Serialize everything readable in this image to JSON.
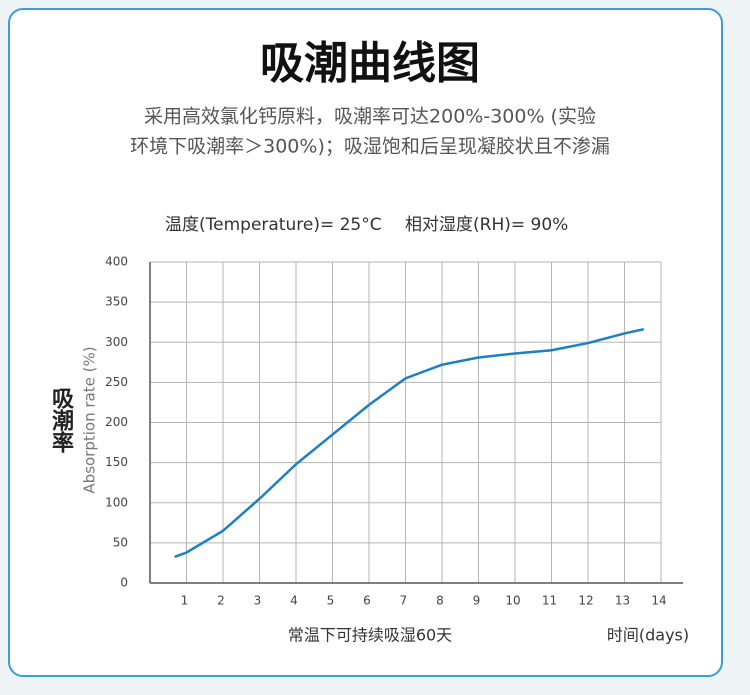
{
  "chart_data": {
    "type": "line",
    "title": "吸潮曲线图",
    "subtitle": [
      "采用高效氯化钙原料，吸潮率可达200%-300% (实验",
      "环境下吸潮率＞300%)；吸湿饱和后呈现凝胶状且不渗漏"
    ],
    "conditions": [
      "温度(Temperature)= 25°C",
      "相对湿度(RH)= 90%"
    ],
    "y_label": "Absorption rate (%)",
    "y_label_cn": "吸潮率",
    "x_label": "时间(days)",
    "x_note": "常温下可持续吸湿60天",
    "x": [
      0.7,
      1,
      2,
      3,
      4,
      5,
      6,
      7,
      8,
      9,
      10,
      11,
      12,
      13,
      13.5
    ],
    "series": [
      {
        "color": "#1f7fc0",
        "values": [
          33,
          38,
          65,
          105,
          148,
          185,
          222,
          255,
          272,
          281,
          286,
          290,
          299,
          311,
          316
        ]
      }
    ],
    "xlim": [
      0,
      14
    ],
    "ylim": [
      0,
      400
    ],
    "xticks": [
      1,
      2,
      3,
      4,
      5,
      6,
      7,
      8,
      9,
      10,
      11,
      12,
      13,
      14
    ],
    "yticks": [
      0,
      50,
      100,
      150,
      200,
      250,
      300,
      350,
      400
    ],
    "grid": true
  }
}
